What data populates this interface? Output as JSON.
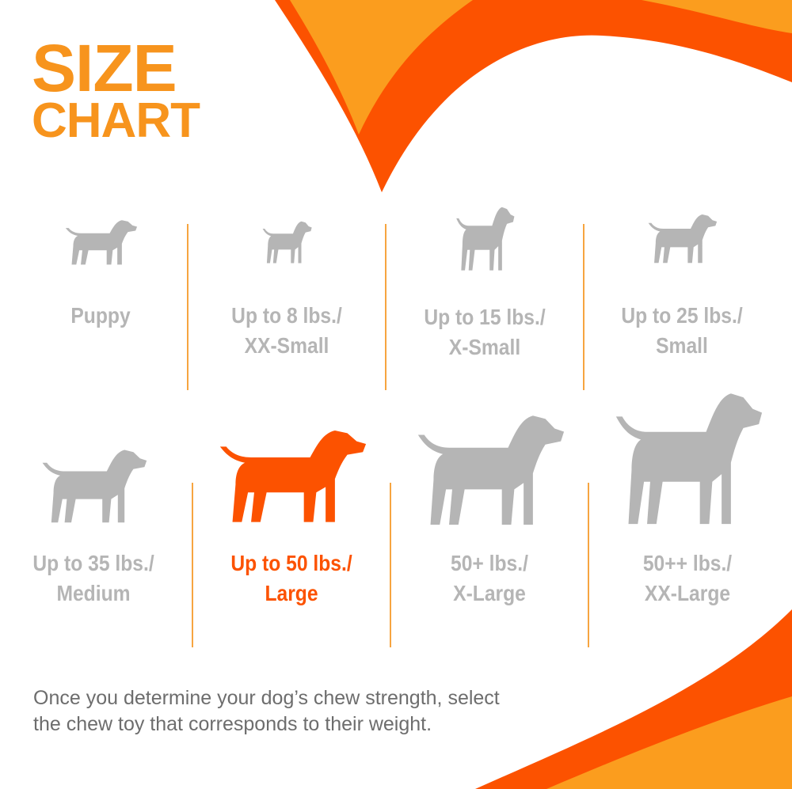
{
  "title": {
    "line1": "SIZE",
    "line2": "CHART"
  },
  "colors": {
    "orange": "#f7941d",
    "red_orange": "#fc5200",
    "gray": "#b5b5b5",
    "text_gray": "#6d6d6d"
  },
  "sizes": [
    {
      "line1": "Puppy",
      "line2": "",
      "icon": "puppy-icon",
      "active": false
    },
    {
      "line1": "Up to 8 lbs./",
      "line2": "XX-Small",
      "icon": "chihuahua-icon",
      "active": false
    },
    {
      "line1": "Up to 15 lbs./",
      "line2": "X-Small",
      "icon": "toy-dog-icon",
      "active": false
    },
    {
      "line1": "Up to 25 lbs./",
      "line2": "Small",
      "icon": "terrier-icon",
      "active": false
    },
    {
      "line1": "Up to 35 lbs./",
      "line2": "Medium",
      "icon": "beagle-icon",
      "active": false
    },
    {
      "line1": "Up to 50 lbs./",
      "line2": "Large",
      "icon": "labrador-icon",
      "active": true
    },
    {
      "line1": "50+ lbs./",
      "line2": "X-Large",
      "icon": "shepherd-icon",
      "active": false
    },
    {
      "line1": "50++ lbs./",
      "line2": "XX-Large",
      "icon": "great-dane-icon",
      "active": false
    }
  ],
  "footer": {
    "line1": "Once you determine your dog’s chew strength, select",
    "line2": "the chew toy that corresponds to their weight."
  }
}
